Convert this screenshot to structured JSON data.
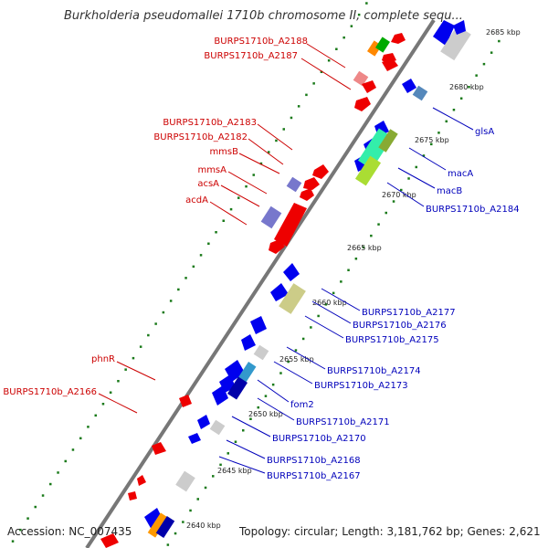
{
  "title": "Burkholderia pseudomallei 1710b chromosome II, complete sequ...",
  "footer": {
    "accession": "Accession: NC_007435",
    "topology": "Topology: circular; Length: 3,181,762 bp; Genes: 2,621"
  },
  "colors": {
    "backbone": "#888888",
    "forward_feature": "#0000ee",
    "reverse_feature": "#ee0000",
    "rna_feature": "#aaaaaa",
    "ticks": "#006600",
    "left_label": "#cc0000",
    "right_label": "#0000bb"
  },
  "scale_ticks": [
    "2685 kbp",
    "2680 kbp",
    "2675 kbp",
    "2670 kbp",
    "2665 kbp",
    "2660 kbp",
    "2655 kbp",
    "2650 kbp",
    "2645 kbp",
    "2640 kbp"
  ],
  "left_labels": [
    "BURPS1710b_A2188",
    "BURPS1710b_A2187",
    "BURPS1710b_A2183",
    "BURPS1710b_A2182",
    "mmsB",
    "mmsA",
    "acsA",
    "acdA",
    "phnR",
    "BURPS1710b_A2166"
  ],
  "right_labels": [
    "glsA",
    "macA",
    "macB",
    "BURPS1710b_A2184",
    "BURPS1710b_A2177",
    "BURPS1710b_A2176",
    "BURPS1710b_A2175",
    "BURPS1710b_A2174",
    "BURPS1710b_A2173",
    "fom2",
    "BURPS1710b_A2171",
    "BURPS1710b_A2170",
    "BURPS1710b_A2168",
    "BURPS1710b_A2167"
  ]
}
